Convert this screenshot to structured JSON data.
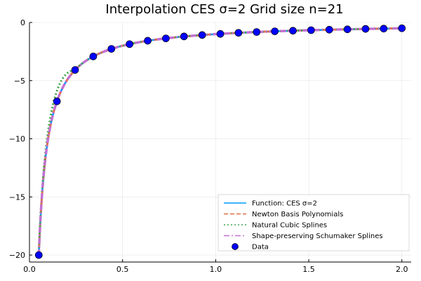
{
  "chart_data": {
    "type": "line",
    "title": "Interpolation CES σ=2 Grid size n=21",
    "xlabel": "",
    "ylabel": "",
    "xlim": [
      0.0,
      2.05
    ],
    "ylim": [
      -20.6,
      0.0
    ],
    "x_ticks": [
      0.0,
      0.5,
      1.0,
      1.5,
      2.0
    ],
    "x_tick_labels": [
      "0.0",
      "0.5",
      "1.0",
      "1.5",
      "2.0"
    ],
    "y_ticks": [
      0,
      -5,
      -10,
      -15,
      -20
    ],
    "y_tick_labels": [
      "0",
      "−5",
      "−10",
      "−15",
      "−20"
    ],
    "grid": true,
    "legend_position": "bottom-right",
    "series": [
      {
        "name": "Function: CES σ=2",
        "style": "solid",
        "color": "#009AFA",
        "function": "-1/x",
        "x_range": [
          0.05,
          2.0
        ]
      },
      {
        "name": "Newton Basis Polynomials",
        "style": "dashed",
        "color": "#E36F47",
        "function": "-1/x",
        "x_range": [
          0.05,
          2.0
        ]
      },
      {
        "name": "Natural Cubic Splines",
        "style": "dotted",
        "color": "#3EA44E",
        "function": "-1/x (slight deviation near 0.05–0.25)",
        "x_range": [
          0.05,
          2.0
        ]
      },
      {
        "name": "Shape-preserving Schumaker Splines",
        "style": "dashdot",
        "color": "#C271D2",
        "function": "-1/x",
        "x_range": [
          0.05,
          2.0
        ]
      }
    ],
    "data_points": {
      "name": "Data",
      "color": "#0000FF",
      "x": [
        0.05,
        0.1475,
        0.245,
        0.3425,
        0.44,
        0.5375,
        0.635,
        0.7325,
        0.83,
        0.9275,
        1.025,
        1.1225,
        1.22,
        1.3175,
        1.415,
        1.5125,
        1.61,
        1.7075,
        1.805,
        1.9025,
        2.0
      ],
      "y": [
        -20.0,
        -6.78,
        -4.08,
        -2.92,
        -2.27,
        -1.86,
        -1.57,
        -1.37,
        -1.2,
        -1.08,
        -0.98,
        -0.89,
        -0.82,
        -0.76,
        -0.71,
        -0.66,
        -0.62,
        -0.59,
        -0.55,
        -0.53,
        -0.5
      ]
    }
  }
}
